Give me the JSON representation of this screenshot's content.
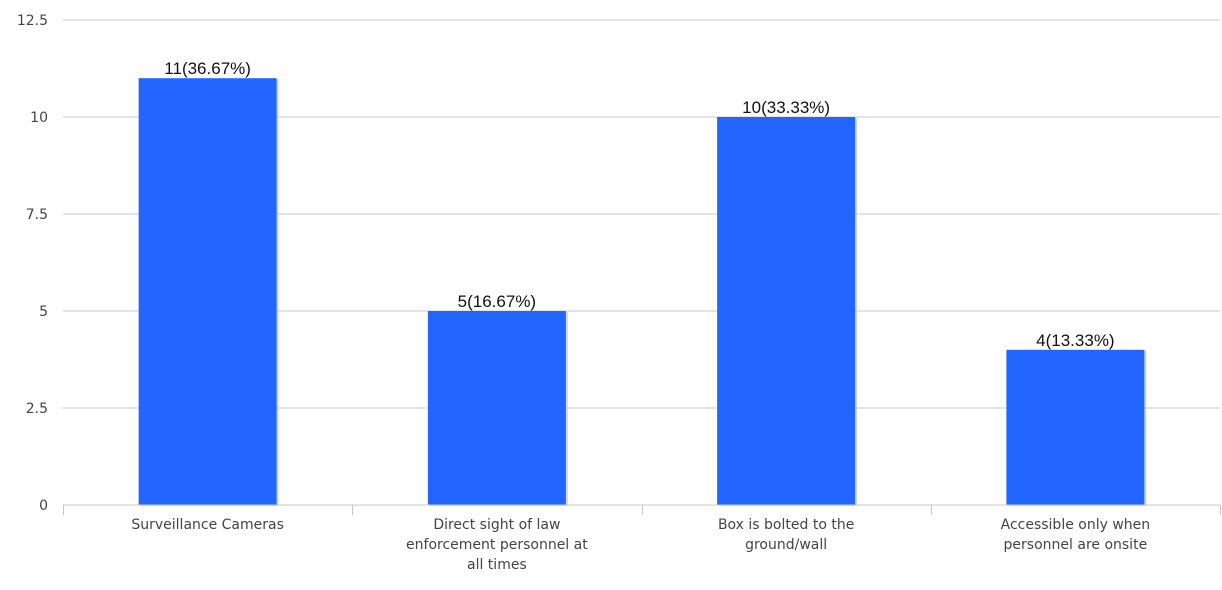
{
  "chart_data": {
    "type": "bar",
    "categories": [
      [
        "Surveillance Cameras"
      ],
      [
        "Direct sight of law",
        "enforcement personnel at",
        "all times"
      ],
      [
        "Box is bolted to the",
        "ground/wall"
      ],
      [
        "Accessible only when",
        "personnel are onsite"
      ]
    ],
    "values": [
      11,
      5,
      10,
      4
    ],
    "data_labels": [
      "11(36.67%)",
      "5(16.67%)",
      "10(33.33%)",
      "4(13.33%)"
    ],
    "y_ticks": [
      "0",
      "2.5",
      "5",
      "7.5",
      "10",
      "12.5"
    ],
    "ylim": [
      0,
      12.5
    ],
    "grid": true,
    "bar_color": "#2266ff",
    "title": "",
    "xlabel": "",
    "ylabel": ""
  }
}
